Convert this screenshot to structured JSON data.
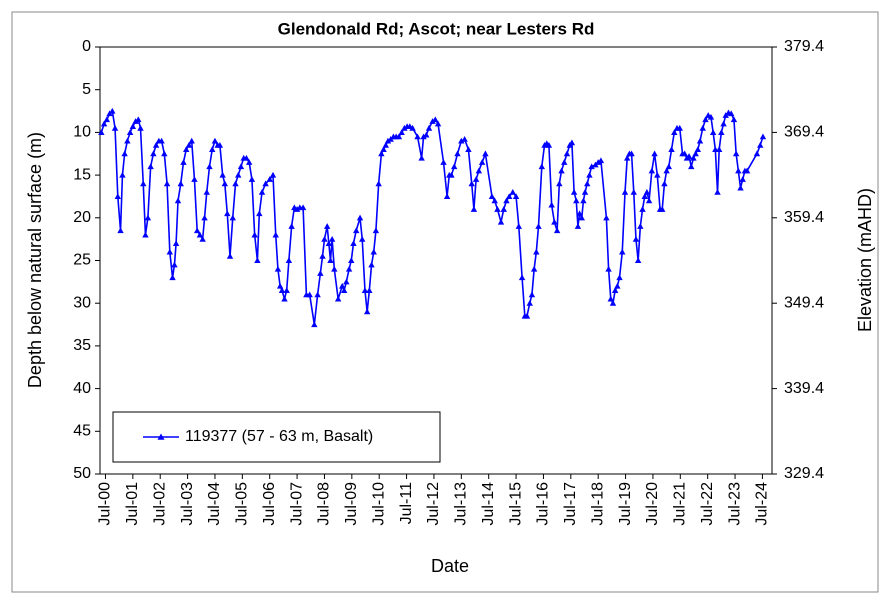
{
  "chart_data": {
    "type": "line",
    "title": "Glendonald Rd; Ascot; near Lesters Rd",
    "x_label": "Date",
    "y_label": "Depth below natural surface (m)",
    "y2_label": "Elevation (mAHD)",
    "xlim": [
      2000.3,
      2024.85
    ],
    "xticks": [
      {
        "value": 2000.5,
        "label": "Jul-00"
      },
      {
        "value": 2001.5,
        "label": "Jul-01"
      },
      {
        "value": 2002.5,
        "label": "Jul-02"
      },
      {
        "value": 2003.5,
        "label": "Jul-03"
      },
      {
        "value": 2004.5,
        "label": "Jul-04"
      },
      {
        "value": 2005.5,
        "label": "Jul-05"
      },
      {
        "value": 2006.5,
        "label": "Jul-06"
      },
      {
        "value": 2007.5,
        "label": "Jul-07"
      },
      {
        "value": 2008.5,
        "label": "Jul-08"
      },
      {
        "value": 2009.5,
        "label": "Jul-09"
      },
      {
        "value": 2010.5,
        "label": "Jul-10"
      },
      {
        "value": 2011.5,
        "label": "Jul-11"
      },
      {
        "value": 2012.5,
        "label": "Jul-12"
      },
      {
        "value": 2013.5,
        "label": "Jul-13"
      },
      {
        "value": 2014.5,
        "label": "Jul-14"
      },
      {
        "value": 2015.5,
        "label": "Jul-15"
      },
      {
        "value": 2016.5,
        "label": "Jul-16"
      },
      {
        "value": 2017.5,
        "label": "Jul-17"
      },
      {
        "value": 2018.5,
        "label": "Jul-18"
      },
      {
        "value": 2019.5,
        "label": "Jul-19"
      },
      {
        "value": 2020.5,
        "label": "Jul-20"
      },
      {
        "value": 2021.5,
        "label": "Jul-21"
      },
      {
        "value": 2022.5,
        "label": "Jul-22"
      },
      {
        "value": 2023.5,
        "label": "Jul-23"
      },
      {
        "value": 2024.5,
        "label": "Jul-24"
      }
    ],
    "ylim": [
      0,
      50
    ],
    "y_inverted": true,
    "yticks": [
      0,
      5,
      10,
      15,
      20,
      25,
      30,
      35,
      40,
      45,
      50
    ],
    "y2lim": [
      329.4,
      379.4
    ],
    "y2ticks": [
      379.4,
      369.4,
      359.4,
      349.4,
      339.4,
      329.4
    ],
    "legend": "lower left",
    "grid": false,
    "series": [
      {
        "name": "119377 (57 - 63 m, Basalt)",
        "color": "#0000ff",
        "marker": "triangle",
        "x": [
          2000.35,
          2000.45,
          2000.55,
          2000.65,
          2000.75,
          2000.85,
          2000.95,
          2001.05,
          2001.12,
          2001.2,
          2001.3,
          2001.4,
          2001.5,
          2001.6,
          2001.7,
          2001.78,
          2001.88,
          2001.96,
          2002.05,
          2002.15,
          2002.25,
          2002.35,
          2002.45,
          2002.55,
          2002.65,
          2002.75,
          2002.85,
          2002.95,
          2003.02,
          2003.08,
          2003.15,
          2003.25,
          2003.35,
          2003.45,
          2003.55,
          2003.65,
          2003.75,
          2003.85,
          2003.95,
          2004.05,
          2004.12,
          2004.2,
          2004.3,
          2004.4,
          2004.5,
          2004.6,
          2004.68,
          2004.78,
          2004.86,
          2004.95,
          2005.05,
          2005.15,
          2005.25,
          2005.35,
          2005.45,
          2005.55,
          2005.65,
          2005.75,
          2005.85,
          2005.95,
          2006.05,
          2006.12,
          2006.22,
          2006.35,
          2006.5,
          2006.62,
          2006.72,
          2006.8,
          2006.88,
          2006.95,
          2007.04,
          2007.12,
          2007.2,
          2007.3,
          2007.4,
          2007.5,
          2007.6,
          2007.72,
          2007.84,
          2007.96,
          2008.13,
          2008.25,
          2008.35,
          2008.43,
          2008.5,
          2008.6,
          2008.66,
          2008.72,
          2008.78,
          2008.86,
          2009.0,
          2009.15,
          2009.22,
          2009.3,
          2009.4,
          2009.48,
          2009.56,
          2009.66,
          2009.8,
          2009.88,
          2009.98,
          2010.06,
          2010.14,
          2010.22,
          2010.3,
          2010.38,
          2010.48,
          2010.58,
          2010.66,
          2010.74,
          2010.82,
          2010.92,
          2011.02,
          2011.12,
          2011.22,
          2011.32,
          2011.42,
          2011.52,
          2011.62,
          2011.72,
          2011.9,
          2012.05,
          2012.12,
          2012.22,
          2012.32,
          2012.45,
          2012.55,
          2012.65,
          2012.85,
          2012.98,
          2013.06,
          2013.14,
          2013.24,
          2013.36,
          2013.5,
          2013.62,
          2013.76,
          2013.88,
          2013.96,
          2014.04,
          2014.14,
          2014.26,
          2014.38,
          2014.62,
          2014.72,
          2014.82,
          2014.95,
          2015.05,
          2015.15,
          2015.25,
          2015.38,
          2015.5,
          2015.6,
          2015.72,
          2015.82,
          2015.9,
          2016.0,
          2016.08,
          2016.16,
          2016.24,
          2016.32,
          2016.44,
          2016.54,
          2016.62,
          2016.7,
          2016.8,
          2016.9,
          2017.0,
          2017.08,
          2017.16,
          2017.26,
          2017.36,
          2017.46,
          2017.54,
          2017.62,
          2017.7,
          2017.76,
          2017.82,
          2017.9,
          2017.96,
          2018.02,
          2018.1,
          2018.18,
          2018.26,
          2018.4,
          2018.5,
          2018.6,
          2018.8,
          2018.88,
          2018.96,
          2019.04,
          2019.12,
          2019.2,
          2019.28,
          2019.38,
          2019.48,
          2019.56,
          2019.64,
          2019.72,
          2019.8,
          2019.88,
          2019.96,
          2020.04,
          2020.12,
          2020.2,
          2020.28,
          2020.36,
          2020.46,
          2020.56,
          2020.66,
          2020.76,
          2020.84,
          2020.92,
          2021.0,
          2021.08,
          2021.18,
          2021.28,
          2021.38,
          2021.48,
          2021.58,
          2021.66,
          2021.74,
          2021.82,
          2021.9,
          2021.98,
          2022.06,
          2022.14,
          2022.22,
          2022.32,
          2022.42,
          2022.52,
          2022.62,
          2022.7,
          2022.78,
          2022.86,
          2022.92,
          2023.0,
          2023.08,
          2023.16,
          2023.26,
          2023.36,
          2023.46,
          2023.54,
          2023.62,
          2023.7,
          2023.78,
          2023.86,
          2023.94,
          2024.3,
          2024.42,
          2024.52
        ],
        "values": [
          10,
          9,
          8.5,
          7.8,
          7.5,
          9.5,
          17.5,
          21.5,
          15,
          12.5,
          11,
          10,
          9.3,
          8.7,
          8.5,
          9.5,
          16,
          22,
          20,
          14,
          12.5,
          11.5,
          11,
          11,
          12.5,
          16,
          24,
          27,
          25.5,
          23,
          18,
          16,
          13.5,
          12,
          11.5,
          11,
          15.5,
          21.5,
          22,
          22.5,
          20,
          17,
          14,
          12,
          11,
          11.5,
          11.5,
          15,
          16,
          19.5,
          24.5,
          20,
          16,
          15,
          14,
          13,
          13,
          13.5,
          15.5,
          22,
          25,
          19.5,
          17,
          16,
          15.5,
          15,
          22,
          26,
          28,
          28.5,
          29.5,
          28.5,
          25,
          21,
          18.8,
          19,
          18.8,
          18.8,
          29,
          29,
          32.5,
          29,
          26.5,
          24.5,
          22.5,
          21,
          23,
          25,
          22.5,
          26,
          29.5,
          28,
          28.5,
          27.5,
          26,
          25,
          23,
          21.5,
          20,
          22.5,
          28.5,
          31,
          28.5,
          25.5,
          24,
          21.5,
          16,
          12.5,
          12,
          11.5,
          11,
          10.8,
          10.5,
          10.5,
          10.5,
          10,
          9.5,
          9.3,
          9.3,
          9.5,
          10.5,
          13,
          10.5,
          10.3,
          9.5,
          8.7,
          8.5,
          9,
          13.5,
          17.5,
          15,
          15,
          14,
          12.5,
          11,
          10.8,
          12,
          16,
          19,
          15.5,
          14.5,
          13.5,
          12.5,
          17.5,
          18,
          19,
          20.5,
          19,
          18,
          17.5,
          17,
          17.5,
          21,
          27,
          31.5,
          31.5,
          30,
          29,
          26,
          24,
          21,
          14,
          11.5,
          11.3,
          11.5,
          18.5,
          20.5,
          21.5,
          16,
          14.5,
          13.5,
          12.5,
          11.5,
          11.2,
          17,
          18,
          21,
          19.5,
          20,
          18,
          17,
          16,
          15,
          14,
          13.8,
          13.5,
          13.3,
          20,
          26,
          29.5,
          30,
          28.5,
          28,
          27,
          24,
          17,
          13,
          12.5,
          12.5,
          17,
          22.5,
          25,
          21,
          19,
          17.5,
          17,
          18,
          14.5,
          12.5,
          15,
          19,
          19,
          16,
          14.5,
          14,
          12,
          10,
          9.5,
          9.5,
          12.5,
          12.5,
          13,
          12.8,
          14,
          13,
          12.5,
          12,
          11,
          9.5,
          8.5,
          8,
          8.2,
          10,
          12,
          17,
          12,
          10,
          9,
          8,
          7.7,
          7.8,
          8.5,
          12.5,
          14.5,
          16.5,
          15.5,
          14.5,
          14.5,
          12.5,
          11.5,
          10.5
        ]
      }
    ]
  }
}
